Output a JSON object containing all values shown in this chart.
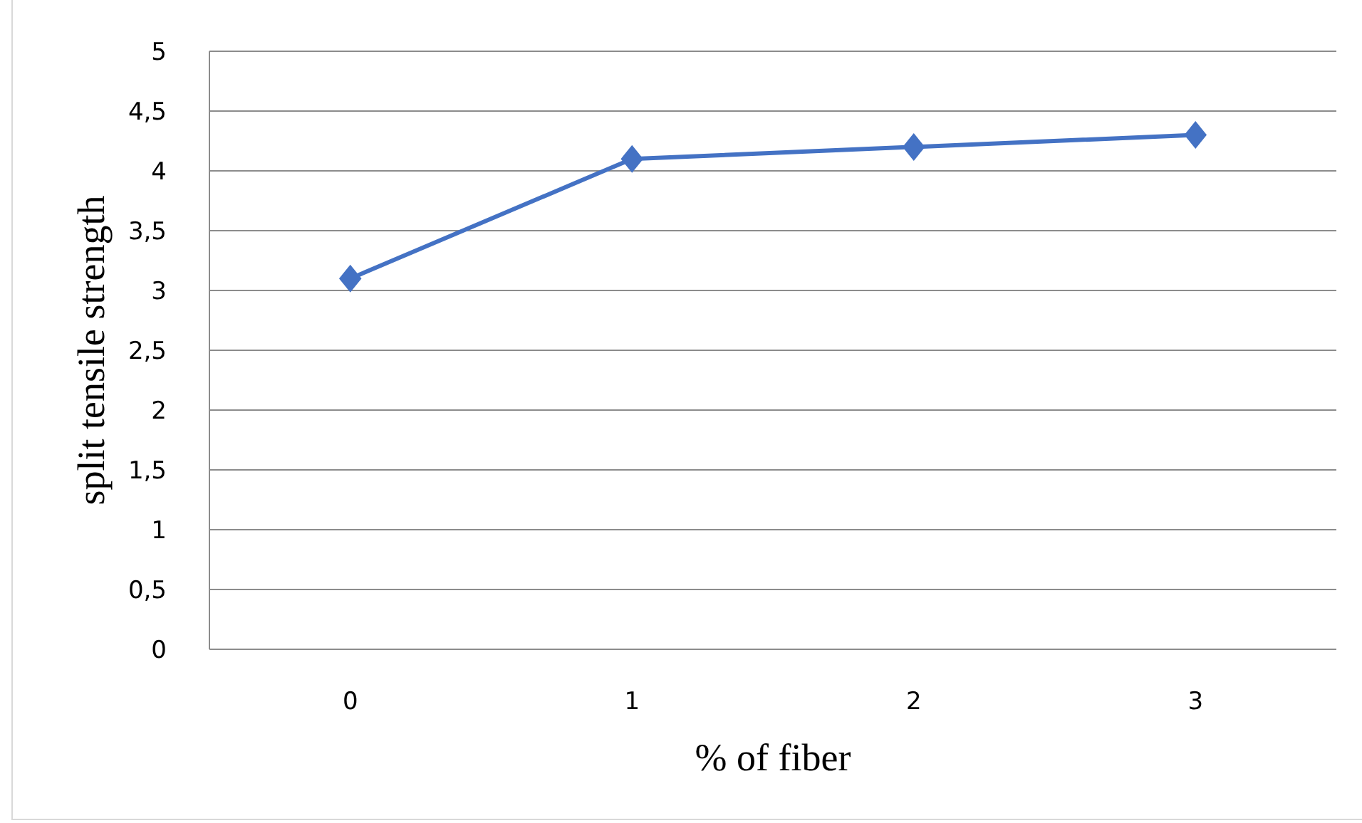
{
  "chart_data": {
    "type": "line",
    "xlabel": "% of fiber",
    "ylabel": "split tensile strength",
    "categories": [
      "0",
      "1",
      "2",
      "3"
    ],
    "series": [
      {
        "color": "#4472c4",
        "values": [
          3.1,
          4.1,
          4.2,
          4.3
        ]
      }
    ],
    "ylim": [
      0,
      5
    ],
    "yticks": [
      0,
      {
        "value": 0.5,
        "label": "0,5"
      },
      1,
      {
        "value": 1.5,
        "label": "1,5"
      },
      2,
      {
        "value": 2.5,
        "label": "2,5"
      },
      3,
      {
        "value": 3.5,
        "label": "3,5"
      },
      4,
      {
        "value": 4.5,
        "label": "4,5"
      },
      5
    ],
    "grid": "y",
    "marker": "diamond"
  }
}
